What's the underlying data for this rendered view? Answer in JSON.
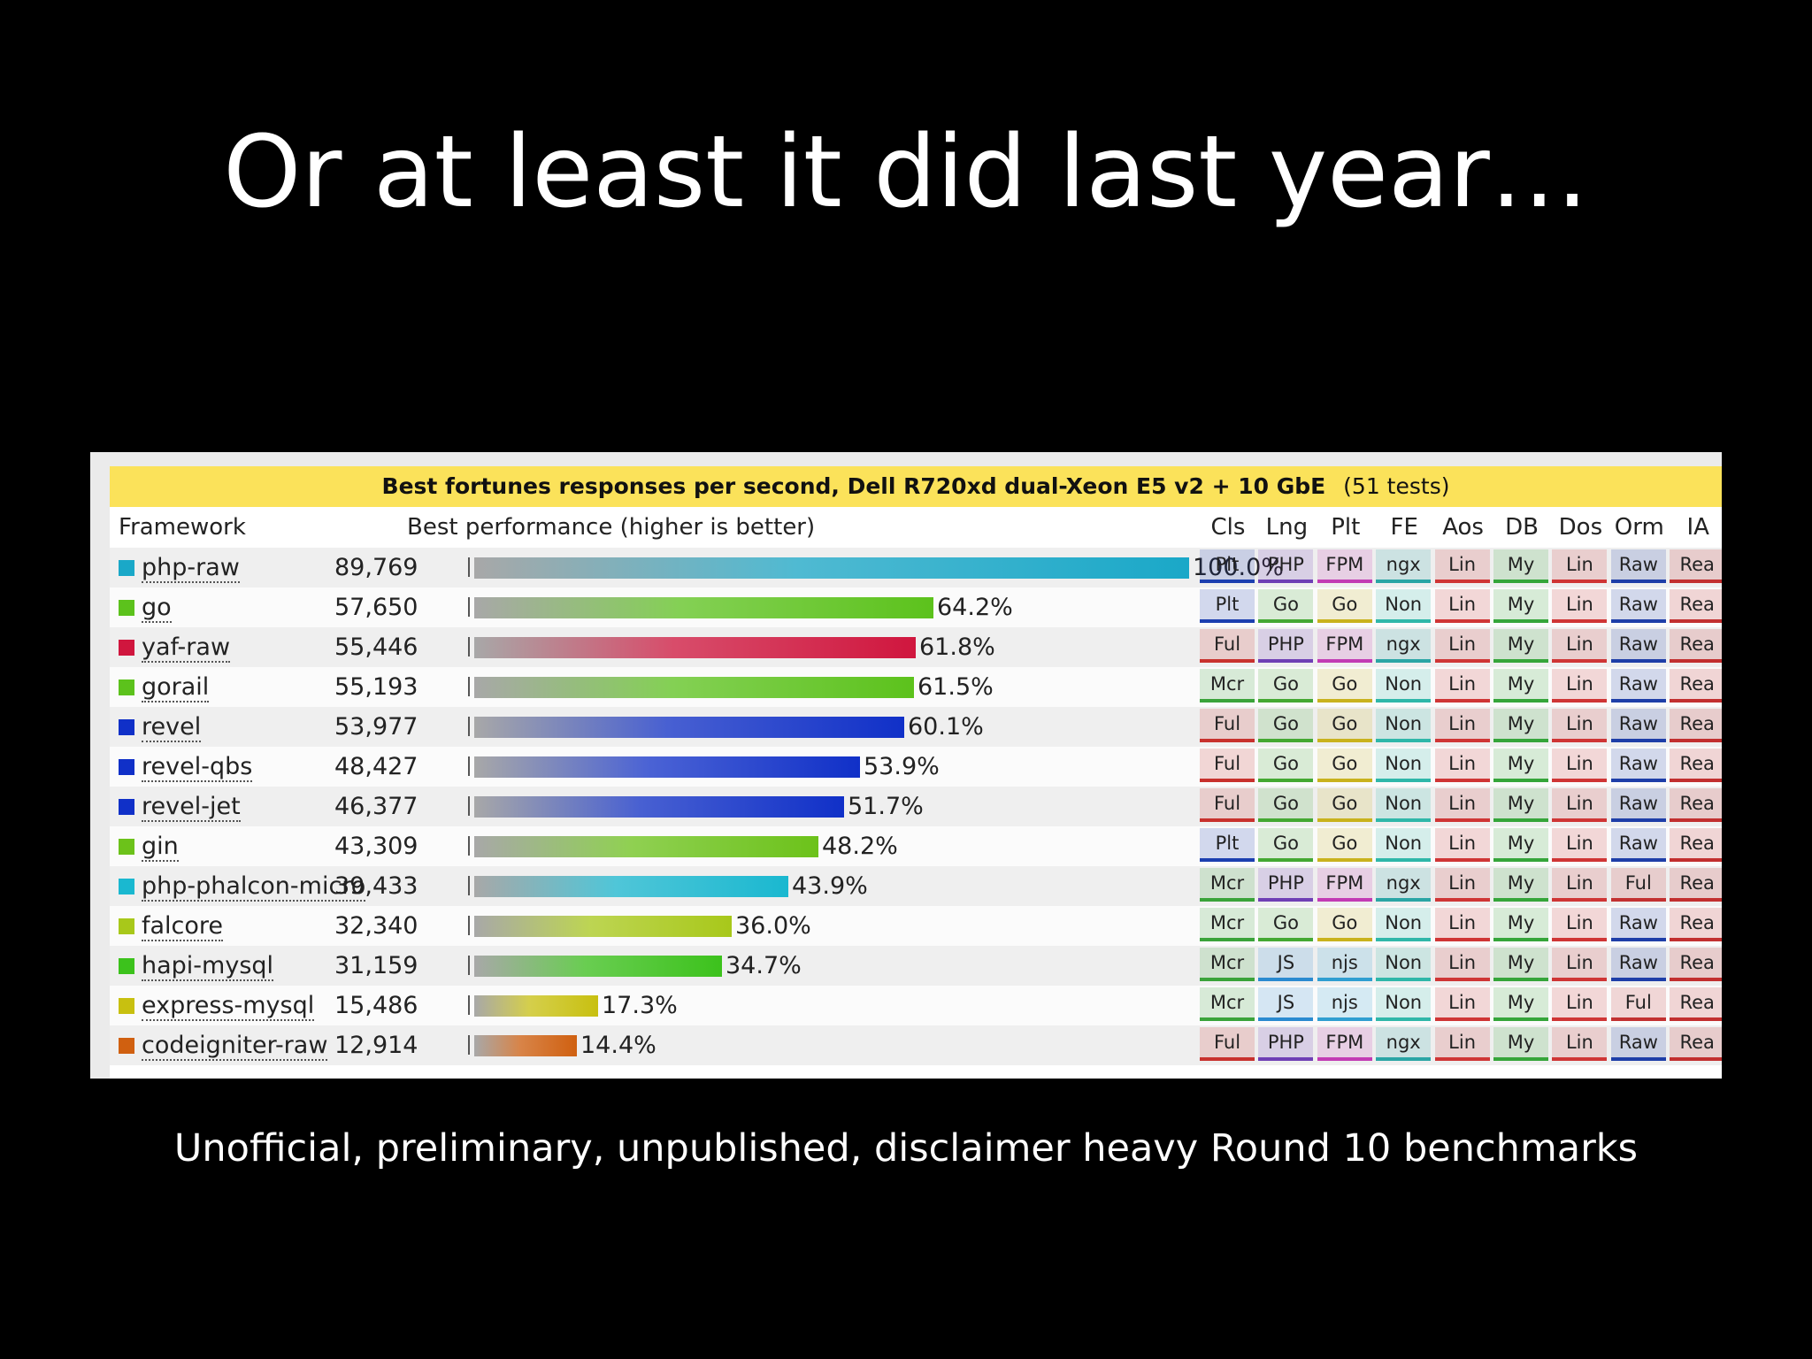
{
  "slide": {
    "title": "Or at least it did last year…",
    "caption": "Unofficial, preliminary, unpublished, disclaimer heavy Round 10 benchmarks"
  },
  "table": {
    "heading_bold": "Best fortunes responses per second, Dell R720xd dual-Xeon E5 v2 + 10 GbE",
    "heading_tests": "(51 tests)",
    "col_framework": "Framework",
    "col_performance": "Best performance (higher is better)",
    "attr_headers": [
      "Cls",
      "Lng",
      "Plt",
      "FE",
      "Aos",
      "DB",
      "Dos",
      "Orm",
      "IA"
    ]
  },
  "attr_colors": {
    "Cls": {
      "Plt": "#1c3fb0",
      "Ful": "#c8312d",
      "Mcr": "#3aa33a"
    },
    "Lng": {
      "PHP": "#6f3fb5",
      "Go": "#44a832",
      "JS": "#2a8ad0"
    },
    "Plt": {
      "FPM": "#c23bb4",
      "Go": "#c9b21d",
      "njs": "#2f9ed1"
    },
    "FE": {
      "ngx": "#2aa5a5",
      "Non": "#2fb7a9"
    },
    "Aos": {
      "Lin": "#cf3535"
    },
    "DB": {
      "My": "#35a53a"
    },
    "Dos": {
      "Lin": "#cf3535"
    },
    "Orm": {
      "Raw": "#1e3ea8",
      "Ful": "#c23131"
    },
    "IA": {
      "Rea": "#c22f2f"
    }
  },
  "chart_data": {
    "type": "bar",
    "title": "Best fortunes responses per second, Dell R720xd dual-Xeon E5 v2 + 10 GbE",
    "ylabel": "Best performance (higher is better)",
    "xlim": [
      0,
      100
    ],
    "rows": [
      {
        "framework": "php-raw",
        "value": "89,769",
        "percent": 100.0,
        "pct_label": "100.0%",
        "color": "#1aa8c8",
        "attrs": [
          "Plt",
          "PHP",
          "FPM",
          "ngx",
          "Lin",
          "My",
          "Lin",
          "Raw",
          "Rea"
        ]
      },
      {
        "framework": "go",
        "value": "57,650",
        "percent": 64.2,
        "pct_label": "64.2%",
        "color": "#5cc21c",
        "attrs": [
          "Plt",
          "Go",
          "Go",
          "Non",
          "Lin",
          "My",
          "Lin",
          "Raw",
          "Rea"
        ]
      },
      {
        "framework": "yaf-raw",
        "value": "55,446",
        "percent": 61.8,
        "pct_label": "61.8%",
        "color": "#d0163e",
        "attrs": [
          "Ful",
          "PHP",
          "FPM",
          "ngx",
          "Lin",
          "My",
          "Lin",
          "Raw",
          "Rea"
        ]
      },
      {
        "framework": "gorail",
        "value": "55,193",
        "percent": 61.5,
        "pct_label": "61.5%",
        "color": "#5cc21c",
        "attrs": [
          "Mcr",
          "Go",
          "Go",
          "Non",
          "Lin",
          "My",
          "Lin",
          "Raw",
          "Rea"
        ]
      },
      {
        "framework": "revel",
        "value": "53,977",
        "percent": 60.1,
        "pct_label": "60.1%",
        "color": "#1030c8",
        "attrs": [
          "Ful",
          "Go",
          "Go",
          "Non",
          "Lin",
          "My",
          "Lin",
          "Raw",
          "Rea"
        ]
      },
      {
        "framework": "revel-qbs",
        "value": "48,427",
        "percent": 53.9,
        "pct_label": "53.9%",
        "color": "#1030c8",
        "attrs": [
          "Ful",
          "Go",
          "Go",
          "Non",
          "Lin",
          "My",
          "Lin",
          "Raw",
          "Rea"
        ]
      },
      {
        "framework": "revel-jet",
        "value": "46,377",
        "percent": 51.7,
        "pct_label": "51.7%",
        "color": "#1030c8",
        "attrs": [
          "Ful",
          "Go",
          "Go",
          "Non",
          "Lin",
          "My",
          "Lin",
          "Raw",
          "Rea"
        ]
      },
      {
        "framework": "gin",
        "value": "43,309",
        "percent": 48.2,
        "pct_label": "48.2%",
        "color": "#6cc21a",
        "attrs": [
          "Plt",
          "Go",
          "Go",
          "Non",
          "Lin",
          "My",
          "Lin",
          "Raw",
          "Rea"
        ]
      },
      {
        "framework": "php-phalcon-micro",
        "value": "39,433",
        "percent": 43.9,
        "pct_label": "43.9%",
        "color": "#1ab8d0",
        "attrs": [
          "Mcr",
          "PHP",
          "FPM",
          "ngx",
          "Lin",
          "My",
          "Lin",
          "Ful",
          "Rea"
        ]
      },
      {
        "framework": "falcore",
        "value": "32,340",
        "percent": 36.0,
        "pct_label": "36.0%",
        "color": "#a8c81a",
        "attrs": [
          "Mcr",
          "Go",
          "Go",
          "Non",
          "Lin",
          "My",
          "Lin",
          "Raw",
          "Rea"
        ]
      },
      {
        "framework": "hapi-mysql",
        "value": "31,159",
        "percent": 34.7,
        "pct_label": "34.7%",
        "color": "#3cc21c",
        "attrs": [
          "Mcr",
          "JS",
          "njs",
          "Non",
          "Lin",
          "My",
          "Lin",
          "Raw",
          "Rea"
        ]
      },
      {
        "framework": "express-mysql",
        "value": "15,486",
        "percent": 17.3,
        "pct_label": "17.3%",
        "color": "#c8c010",
        "attrs": [
          "Mcr",
          "JS",
          "njs",
          "Non",
          "Lin",
          "My",
          "Lin",
          "Ful",
          "Rea"
        ]
      },
      {
        "framework": "codeigniter-raw",
        "value": "12,914",
        "percent": 14.4,
        "pct_label": "14.4%",
        "color": "#d06010",
        "attrs": [
          "Ful",
          "PHP",
          "FPM",
          "ngx",
          "Lin",
          "My",
          "Lin",
          "Raw",
          "Rea"
        ]
      }
    ]
  }
}
